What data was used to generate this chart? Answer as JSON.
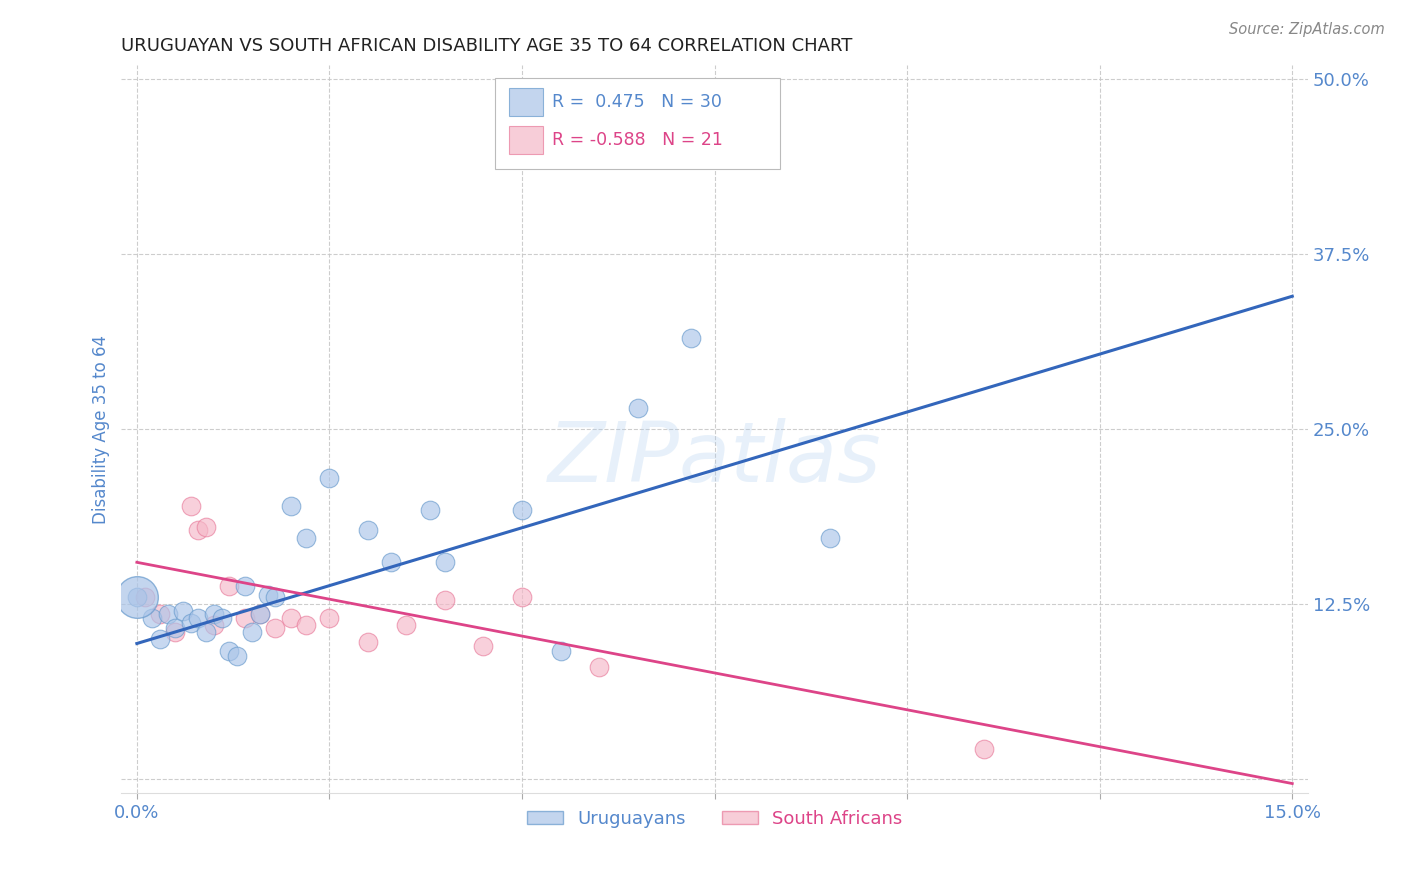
{
  "title": "URUGUAYAN VS SOUTH AFRICAN DISABILITY AGE 35 TO 64 CORRELATION CHART",
  "source": "Source: ZipAtlas.com",
  "ylabel_label": "Disability Age 35 to 64",
  "x_min": 0.0,
  "x_max": 0.15,
  "y_min": 0.0,
  "y_max": 0.5,
  "x_ticks": [
    0.0,
    0.025,
    0.05,
    0.075,
    0.1,
    0.125,
    0.15
  ],
  "x_tick_labels": [
    "0.0%",
    "",
    "",
    "",
    "",
    "",
    "15.0%"
  ],
  "y_ticks": [
    0.0,
    0.125,
    0.25,
    0.375,
    0.5
  ],
  "y_tick_labels": [
    "",
    "12.5%",
    "25.0%",
    "37.5%",
    "50.0%"
  ],
  "grid_color": "#c8c8c8",
  "background_color": "#ffffff",
  "legend_R_blue": "0.475",
  "legend_N_blue": "30",
  "legend_R_pink": "-0.588",
  "legend_N_pink": "21",
  "blue_fill": "#aac4e8",
  "blue_edge": "#6699cc",
  "pink_fill": "#f5b8c8",
  "pink_edge": "#e87a9a",
  "line_blue_color": "#3366bb",
  "line_pink_color": "#dd4488",
  "title_color": "#222222",
  "axis_label_color": "#5588cc",
  "tick_color": "#5588cc",
  "uruguayans_x": [
    0.0,
    0.002,
    0.003,
    0.004,
    0.005,
    0.006,
    0.007,
    0.008,
    0.009,
    0.01,
    0.011,
    0.012,
    0.013,
    0.014,
    0.015,
    0.016,
    0.017,
    0.018,
    0.02,
    0.022,
    0.025,
    0.03,
    0.033,
    0.038,
    0.04,
    0.05,
    0.055,
    0.065,
    0.072,
    0.09
  ],
  "uruguayans_y": [
    0.13,
    0.115,
    0.1,
    0.118,
    0.108,
    0.12,
    0.112,
    0.115,
    0.105,
    0.118,
    0.115,
    0.092,
    0.088,
    0.138,
    0.105,
    0.118,
    0.132,
    0.13,
    0.195,
    0.172,
    0.215,
    0.178,
    0.155,
    0.192,
    0.155,
    0.192,
    0.092,
    0.265,
    0.315,
    0.172
  ],
  "south_africans_x": [
    0.001,
    0.003,
    0.005,
    0.007,
    0.008,
    0.009,
    0.01,
    0.012,
    0.014,
    0.016,
    0.018,
    0.02,
    0.022,
    0.025,
    0.03,
    0.035,
    0.04,
    0.045,
    0.05,
    0.06,
    0.11
  ],
  "south_africans_y": [
    0.13,
    0.118,
    0.105,
    0.195,
    0.178,
    0.18,
    0.11,
    0.138,
    0.115,
    0.118,
    0.108,
    0.115,
    0.11,
    0.115,
    0.098,
    0.11,
    0.128,
    0.095,
    0.13,
    0.08,
    0.022
  ],
  "blue_line_x": [
    0.0,
    0.15
  ],
  "blue_line_y": [
    0.097,
    0.345
  ],
  "pink_line_x": [
    0.0,
    0.15
  ],
  "pink_line_y": [
    0.155,
    -0.003
  ]
}
